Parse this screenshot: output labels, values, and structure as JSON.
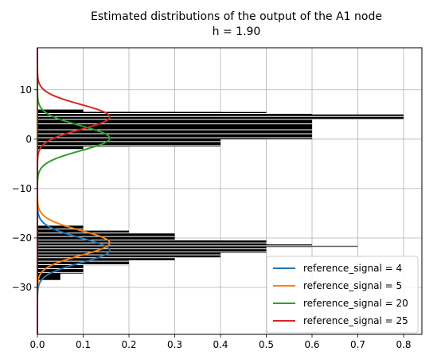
{
  "chart_data": {
    "type": "line",
    "title": "Estimated distributions of the output of the A1 node",
    "subtitle": "h = 1.90",
    "xlabel": "",
    "ylabel": "",
    "xlim": [
      0.0,
      0.84
    ],
    "ylim": [
      -39.5,
      18.5
    ],
    "xticks": [
      "0.0",
      "0.1",
      "0.2",
      "0.3",
      "0.4",
      "0.5",
      "0.6",
      "0.7",
      "0.8"
    ],
    "yticks": [
      "10",
      "0",
      "−10",
      "−20",
      "−30"
    ],
    "grid": true,
    "legend_position": "lower-right",
    "series": [
      {
        "name": "reference_signal = 4",
        "color": "#1f77b4",
        "mean": -22.5,
        "std": 2.5,
        "peak": 0.158
      },
      {
        "name": "reference_signal = 5",
        "color": "#ff7f0e",
        "mean": -21.0,
        "std": 2.5,
        "peak": 0.158
      },
      {
        "name": "reference_signal = 20",
        "color": "#2ca02c",
        "mean": 0.2,
        "std": 2.5,
        "peak": 0.158
      },
      {
        "name": "reference_signal = 25",
        "color": "#d62728",
        "mean": 4.5,
        "std": 2.5,
        "peak": 0.158
      }
    ],
    "histogram_color": "#000000",
    "histogram_bars": [
      {
        "lo": -27.2,
        "hi": -17.5,
        "len": 0.1
      },
      {
        "lo": -25.5,
        "hi": -18.5,
        "len": 0.2
      },
      {
        "lo": -24.5,
        "hi": -19.0,
        "len": 0.3
      },
      {
        "lo": -24.0,
        "hi": -20.5,
        "len": 0.4
      },
      {
        "lo": -23.0,
        "hi": -20.5,
        "len": 0.5
      },
      {
        "lo": -21.8,
        "hi": -21.3,
        "len": 0.6
      },
      {
        "lo": -21.8,
        "hi": -21.5,
        "len": 0.7
      },
      {
        "lo": -28.5,
        "hi": -26.5,
        "len": 0.05
      },
      {
        "lo": -2.0,
        "hi": 6.0,
        "len": 0.1
      },
      {
        "lo": -1.5,
        "hi": 5.5,
        "len": 0.2
      },
      {
        "lo": -1.0,
        "hi": 5.5,
        "len": 0.3
      },
      {
        "lo": -1.5,
        "hi": 5.5,
        "len": 0.4
      },
      {
        "lo": 0.0,
        "hi": 5.5,
        "len": 0.5
      },
      {
        "lo": 0.0,
        "hi": 5.2,
        "len": 0.6
      },
      {
        "lo": 4.0,
        "hi": 5.0,
        "len": 0.8
      }
    ],
    "histogram_gap_lines": [
      -27.0,
      -26.2,
      -25.4,
      -24.7,
      -24.0,
      -23.4,
      -22.8,
      -22.2,
      -21.6,
      -21.0,
      -20.4,
      -19.7,
      -19.0,
      -18.2,
      -1.3,
      -0.5,
      0.3,
      1.1,
      1.9,
      3.1,
      4.0,
      4.6,
      5.2
    ]
  }
}
